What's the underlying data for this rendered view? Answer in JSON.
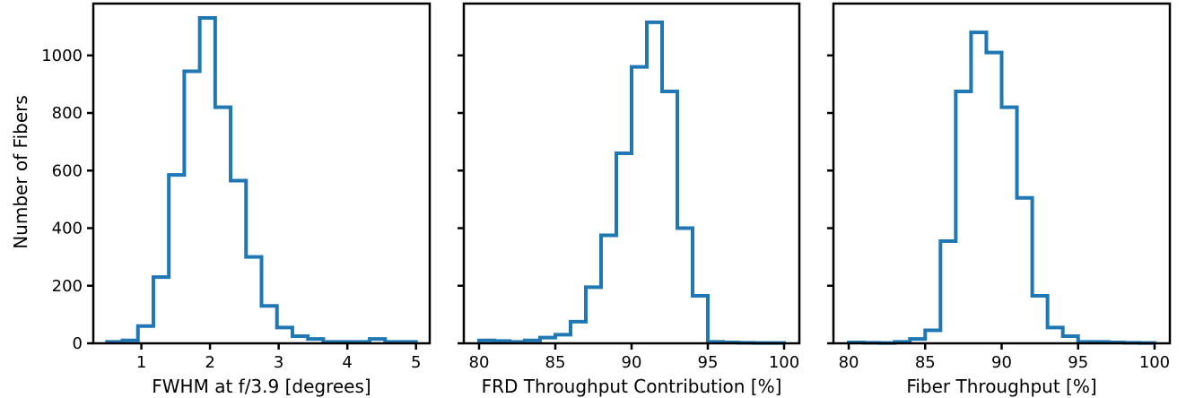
{
  "chart_data": [
    {
      "type": "histogram",
      "xlabel": "FWHM at f/3.9 [degrees]",
      "ylabel": "Number of Fibers",
      "xlim": [
        0.3,
        5.2
      ],
      "ylim": [
        0,
        1180
      ],
      "xticks": [
        1,
        2,
        3,
        4,
        5
      ],
      "xtick_labels": [
        "1",
        "2",
        "3",
        "4",
        "5"
      ],
      "yticks": [
        0,
        200,
        400,
        600,
        800,
        1000
      ],
      "ytick_labels": [
        "0",
        "200",
        "400",
        "600",
        "800",
        "1000"
      ],
      "bin_edges": [
        0.5,
        0.725,
        0.95,
        1.175,
        1.4,
        1.625,
        1.85,
        2.075,
        2.3,
        2.525,
        2.75,
        2.975,
        3.2,
        3.425,
        3.65,
        3.875,
        4.1,
        4.325,
        4.55,
        4.775,
        5.0
      ],
      "counts": [
        5,
        10,
        60,
        230,
        585,
        945,
        1130,
        820,
        565,
        300,
        130,
        55,
        25,
        15,
        5,
        5,
        5,
        15,
        5,
        5
      ],
      "color": "#1f77b4"
    },
    {
      "type": "histogram",
      "xlabel": "FRD Throughput Contribution [%]",
      "ylabel": "",
      "xlim": [
        79,
        101
      ],
      "ylim": [
        0,
        1180
      ],
      "xticks": [
        80,
        85,
        90,
        95,
        100
      ],
      "xtick_labels": [
        "80",
        "85",
        "90",
        "95",
        "100"
      ],
      "yticks": [
        0,
        200,
        400,
        600,
        800,
        1000
      ],
      "ytick_labels": [],
      "bin_edges": [
        80,
        81,
        82,
        83,
        84,
        85,
        86,
        87,
        88,
        89,
        90,
        91,
        92,
        93,
        94,
        95,
        96,
        97,
        98,
        99,
        100
      ],
      "counts": [
        10,
        8,
        5,
        10,
        20,
        30,
        75,
        195,
        375,
        660,
        960,
        1115,
        875,
        400,
        165,
        5,
        3,
        2,
        1,
        1
      ],
      "color": "#1f77b4"
    },
    {
      "type": "histogram",
      "xlabel": "Fiber Throughput [%]",
      "ylabel": "",
      "xlim": [
        79,
        101
      ],
      "ylim": [
        0,
        1180
      ],
      "xticks": [
        80,
        85,
        90,
        95,
        100
      ],
      "xtick_labels": [
        "80",
        "85",
        "90",
        "95",
        "100"
      ],
      "yticks": [
        0,
        200,
        400,
        600,
        800,
        1000
      ],
      "ytick_labels": [],
      "bin_edges": [
        80,
        81,
        82,
        83,
        84,
        85,
        86,
        87,
        88,
        89,
        90,
        91,
        92,
        93,
        94,
        95,
        96,
        97,
        98,
        99,
        100
      ],
      "counts": [
        3,
        2,
        1,
        5,
        15,
        45,
        355,
        875,
        1080,
        1010,
        820,
        505,
        165,
        55,
        25,
        5,
        5,
        3,
        2,
        1
      ],
      "color": "#1f77b4"
    }
  ]
}
